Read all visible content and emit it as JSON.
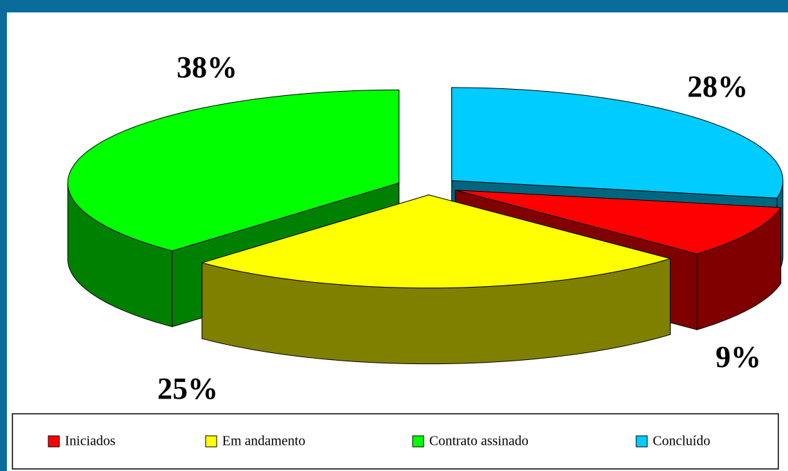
{
  "chart_data": {
    "type": "pie",
    "categories": [
      "Iniciados",
      "Em andamento",
      "Contrato assinado",
      "Concluído"
    ],
    "values": [
      9,
      25,
      38,
      28
    ],
    "value_labels": [
      "9%",
      "25%",
      "38%",
      "28%"
    ],
    "colors": [
      "#ff0000",
      "#ffff00",
      "#00ff00",
      "#00ccff"
    ],
    "legend": "bottom"
  }
}
